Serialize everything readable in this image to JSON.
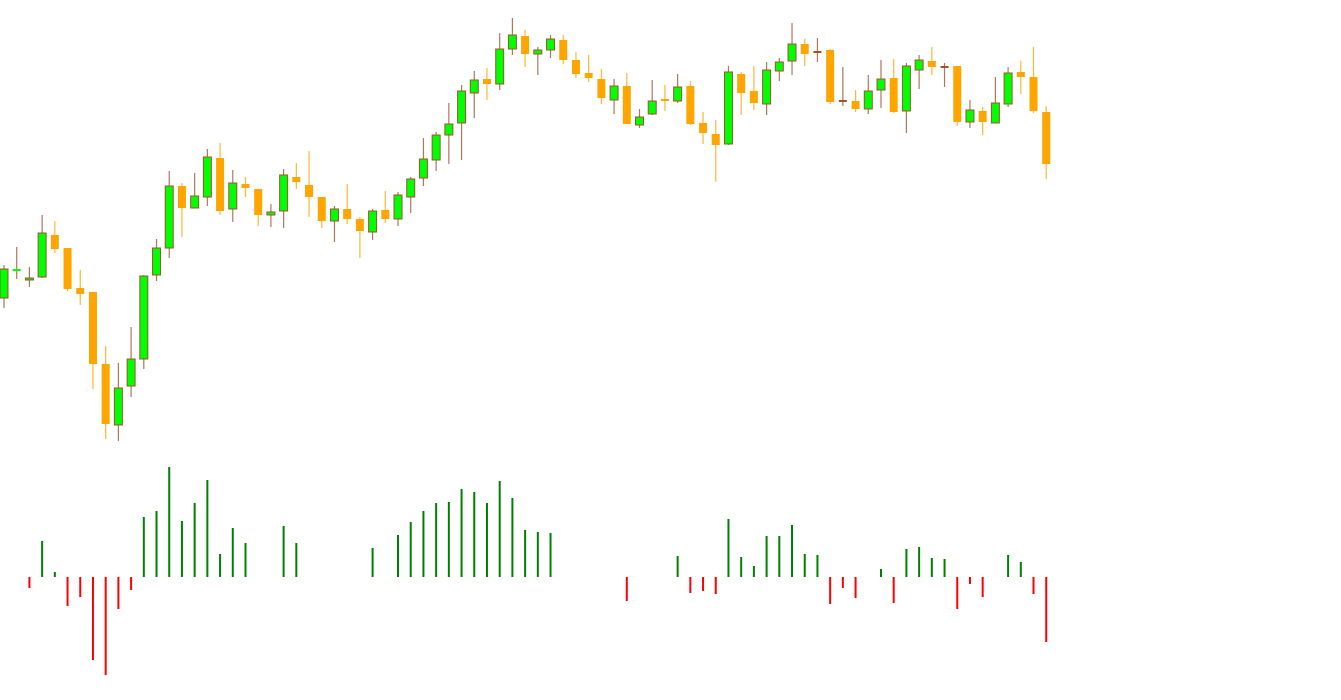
{
  "chart_data": [
    {
      "type": "candlestick",
      "title": "",
      "xlabel": "",
      "ylabel": "",
      "grid": false,
      "colors": {
        "bull_body": "#00ff00",
        "bull_outline": "#a0522d",
        "bear_body": "#ffa500",
        "bear_wick": "#ffa500"
      },
      "ohlc": [
        [
          162,
          195,
          152,
          191
        ],
        [
          190,
          213,
          181,
          190
        ],
        [
          180,
          193,
          173,
          182
        ],
        [
          183,
          245,
          182,
          227
        ],
        [
          225,
          239,
          207,
          211
        ],
        [
          212,
          212,
          169,
          171
        ],
        [
          172,
          190,
          155,
          166
        ],
        [
          168,
          168,
          71,
          96
        ],
        [
          96,
          114,
          21,
          36
        ],
        [
          35,
          97,
          19,
          72
        ],
        [
          74,
          133,
          63,
          101
        ],
        [
          101,
          185,
          91,
          184
        ],
        [
          185,
          221,
          179,
          212
        ],
        [
          212,
          289,
          202,
          274
        ],
        [
          274,
          277,
          223,
          252
        ],
        [
          252,
          287,
          252,
          264
        ],
        [
          263,
          311,
          254,
          303
        ],
        [
          302,
          317,
          245,
          249
        ],
        [
          251,
          290,
          238,
          277
        ],
        [
          276,
          283,
          263,
          272
        ],
        [
          271,
          271,
          234,
          245
        ],
        [
          245,
          256,
          233,
          248
        ],
        [
          249,
          291,
          232,
          285
        ],
        [
          283,
          297,
          271,
          278
        ],
        [
          275,
          309,
          243,
          263
        ],
        [
          263,
          263,
          232,
          239
        ],
        [
          239,
          254,
          218,
          251
        ],
        [
          251,
          276,
          236,
          241
        ],
        [
          241,
          243,
          202,
          229
        ],
        [
          228,
          251,
          220,
          249
        ],
        [
          250,
          269,
          237,
          241
        ],
        [
          241,
          268,
          234,
          265
        ],
        [
          263,
          283,
          247,
          281
        ],
        [
          282,
          322,
          274,
          301
        ],
        [
          300,
          328,
          289,
          325
        ],
        [
          325,
          357,
          296,
          336
        ],
        [
          337,
          375,
          300,
          369
        ],
        [
          367,
          389,
          342,
          380
        ],
        [
          381,
          392,
          360,
          376
        ],
        [
          376,
          427,
          370,
          411
        ],
        [
          411,
          442,
          405,
          425
        ],
        [
          424,
          430,
          393,
          406
        ],
        [
          406,
          413,
          385,
          410
        ],
        [
          410,
          425,
          402,
          421
        ],
        [
          420,
          425,
          396,
          400
        ],
        [
          400,
          408,
          382,
          386
        ],
        [
          387,
          405,
          378,
          382
        ],
        [
          381,
          391,
          356,
          362
        ],
        [
          360,
          381,
          346,
          374
        ],
        [
          374,
          387,
          336,
          336
        ],
        [
          335,
          351,
          332,
          343
        ],
        [
          346,
          380,
          345,
          359
        ],
        [
          361,
          375,
          349,
          359
        ],
        [
          359,
          386,
          357,
          373
        ],
        [
          374,
          379,
          335,
          336
        ],
        [
          337,
          348,
          316,
          327
        ],
        [
          326,
          340,
          278,
          315
        ],
        [
          316,
          394,
          315,
          388
        ],
        [
          386,
          388,
          345,
          367
        ],
        [
          369,
          394,
          350,
          357
        ],
        [
          356,
          398,
          345,
          390
        ],
        [
          389,
          402,
          379,
          398
        ],
        [
          399,
          437,
          385,
          416
        ],
        [
          416,
          421,
          394,
          406
        ],
        [
          408,
          422,
          398,
          408
        ],
        [
          410,
          411,
          356,
          358
        ],
        [
          359,
          393,
          354,
          359
        ],
        [
          359,
          370,
          348,
          351
        ],
        [
          351,
          385,
          346,
          369
        ],
        [
          370,
          400,
          352,
          381
        ],
        [
          382,
          401,
          347,
          348
        ],
        [
          349,
          397,
          327,
          394
        ],
        [
          390,
          405,
          371,
          400
        ],
        [
          399,
          413,
          385,
          393
        ],
        [
          393,
          397,
          373,
          393
        ],
        [
          394,
          394,
          334,
          338
        ],
        [
          338,
          360,
          332,
          350
        ],
        [
          349,
          353,
          325,
          338
        ],
        [
          337,
          383,
          337,
          357
        ],
        [
          356,
          393,
          353,
          387
        ],
        [
          388,
          399,
          366,
          383
        ],
        [
          383,
          413,
          347,
          349
        ],
        [
          348,
          354,
          281,
          296
        ]
      ]
    },
    {
      "type": "bar",
      "title": "",
      "xlabel": "",
      "ylabel": "",
      "grid": false,
      "colors": {
        "positive": "#008000",
        "negative": "#ff0000"
      },
      "values": [
        0,
        0,
        -11,
        36,
        5,
        -29,
        -20,
        -83,
        -98,
        -32,
        -13,
        60,
        66,
        110,
        56,
        74,
        97,
        23,
        49,
        34,
        0,
        0,
        51,
        34,
        0,
        0,
        0,
        0,
        0,
        29,
        0,
        42,
        55,
        66,
        74,
        75,
        88,
        85,
        74,
        96,
        79,
        47,
        45,
        44,
        0,
        0,
        0,
        0,
        0,
        -24,
        0,
        0,
        0,
        21,
        -16,
        -14,
        -17,
        58,
        20,
        11,
        41,
        41,
        52,
        23,
        22,
        -27,
        -11,
        -21,
        0,
        8,
        -26,
        28,
        30,
        19,
        18,
        -32,
        -7,
        -20,
        0,
        22,
        15,
        -17,
        -65
      ]
    }
  ]
}
